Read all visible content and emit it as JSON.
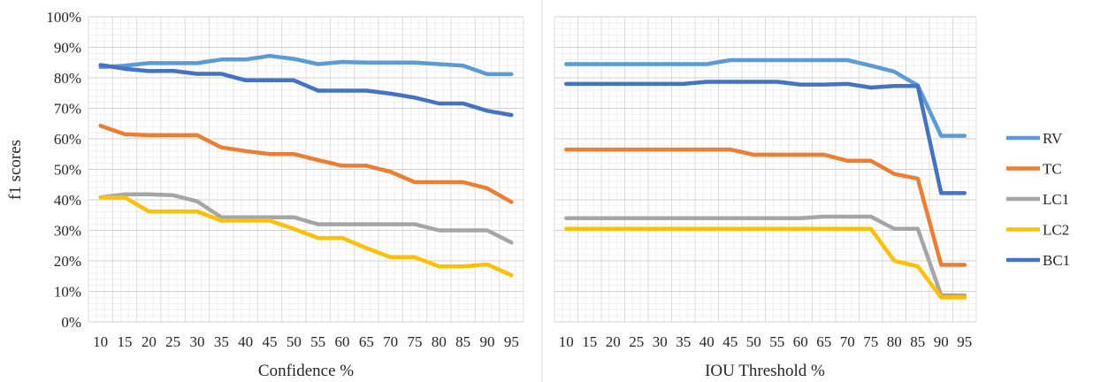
{
  "colors": {
    "RV": "#5B9BD5",
    "TC": "#ED7D31",
    "LC1": "#A5A5A5",
    "LC2": "#FFC000",
    "BC1": "#4472C4"
  },
  "legend": [
    "RV",
    "TC",
    "LC1",
    "LC2",
    "BC1"
  ],
  "ylabel": "f1 scores",
  "chart_data": [
    {
      "type": "line",
      "xlabel": "Confidence %",
      "ylabel": "f1 scores",
      "ylim": [
        0,
        100
      ],
      "y_ticks": [
        "0%",
        "10%",
        "20%",
        "30%",
        "40%",
        "50%",
        "60%",
        "70%",
        "80%",
        "90%",
        "100%"
      ],
      "grid": true,
      "x": [
        "10",
        "15",
        "20",
        "25",
        "30",
        "35",
        "40",
        "45",
        "50",
        "55",
        "60",
        "65",
        "70",
        "75",
        "80",
        "85",
        "90",
        "95"
      ],
      "series": [
        {
          "name": "RV",
          "values": [
            83.5,
            84,
            84.8,
            84.8,
            84.8,
            86,
            86,
            87.2,
            86.2,
            84.5,
            85.2,
            85,
            85,
            85,
            84.5,
            84,
            81.2,
            81.2
          ]
        },
        {
          "name": "TC",
          "values": [
            64.3,
            61.5,
            61.2,
            61.2,
            61.2,
            57.2,
            56,
            55,
            55,
            53,
            51.2,
            51.2,
            49.2,
            45.8,
            45.8,
            45.8,
            43.8,
            39.3
          ]
        },
        {
          "name": "LC1",
          "values": [
            40.8,
            41.8,
            41.8,
            41.5,
            39.5,
            34.3,
            34.3,
            34.3,
            34.3,
            32,
            32,
            32,
            32,
            32,
            30,
            30,
            30,
            26
          ]
        },
        {
          "name": "LC2",
          "values": [
            40.8,
            40.8,
            36.2,
            36.2,
            36.2,
            33.2,
            33.2,
            33.2,
            30.5,
            27.5,
            27.5,
            24.2,
            21.2,
            21.2,
            18.2,
            18.2,
            18.8,
            15.3
          ]
        },
        {
          "name": "BC1",
          "values": [
            84.2,
            83,
            82.2,
            82.3,
            81.3,
            81.3,
            79.2,
            79.2,
            79.2,
            75.8,
            75.8,
            75.8,
            74.8,
            73.5,
            71.6,
            71.6,
            69.2,
            67.8
          ]
        }
      ]
    },
    {
      "type": "line",
      "xlabel": "IOU Threshold %",
      "ylim": [
        0,
        100
      ],
      "grid": true,
      "x": [
        "10",
        "15",
        "20",
        "25",
        "30",
        "35",
        "40",
        "45",
        "50",
        "55",
        "60",
        "65",
        "70",
        "75",
        "80",
        "85",
        "90",
        "95"
      ],
      "series": [
        {
          "name": "RV",
          "values": [
            84.5,
            84.5,
            84.5,
            84.5,
            84.5,
            84.5,
            84.5,
            85.8,
            85.8,
            85.8,
            85.8,
            85.8,
            85.8,
            84,
            82,
            77.5,
            61,
            61
          ]
        },
        {
          "name": "TC",
          "values": [
            56.5,
            56.5,
            56.5,
            56.5,
            56.5,
            56.5,
            56.5,
            56.5,
            54.8,
            54.8,
            54.8,
            54.8,
            52.8,
            52.8,
            48.5,
            47,
            18.7,
            18.7
          ]
        },
        {
          "name": "LC1",
          "values": [
            34,
            34,
            34,
            34,
            34,
            34,
            34,
            34,
            34,
            34,
            34,
            34.5,
            34.5,
            34.5,
            30.5,
            30.5,
            8.7,
            8.7
          ]
        },
        {
          "name": "LC2",
          "values": [
            30.5,
            30.5,
            30.5,
            30.5,
            30.5,
            30.5,
            30.5,
            30.5,
            30.5,
            30.5,
            30.5,
            30.5,
            30.5,
            30.5,
            20,
            18.2,
            8,
            8
          ]
        },
        {
          "name": "BC1",
          "values": [
            78,
            78,
            78,
            78,
            78,
            78,
            78.7,
            78.7,
            78.7,
            78.7,
            77.8,
            77.8,
            78,
            76.8,
            77.3,
            77.3,
            42.2,
            42.2
          ]
        }
      ]
    }
  ]
}
